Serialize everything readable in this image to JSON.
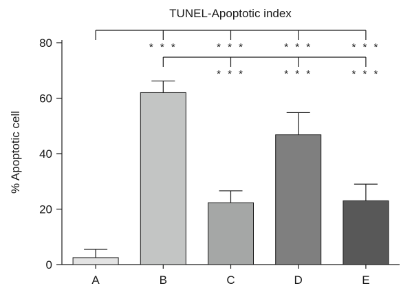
{
  "chart_data": {
    "type": "bar",
    "title": "TUNEL-Apoptotic index",
    "xlabel": "",
    "ylabel": "% Apoptotic cell",
    "ylim": [
      0,
      80
    ],
    "yticks": [
      0,
      20,
      40,
      60,
      80
    ],
    "grid": false,
    "categories": [
      "A",
      "B",
      "C",
      "D",
      "E"
    ],
    "values": [
      2.5,
      62,
      22.3,
      46.8,
      23
    ],
    "errors": [
      3,
      4.2,
      4.3,
      8,
      6
    ],
    "colors": [
      "#e3e3e3",
      "#c3c5c4",
      "#a5a7a6",
      "#7f7f7f",
      "#585858"
    ],
    "significance": [
      {
        "reference": "A",
        "marker": "* * *",
        "compared_to": [
          "B",
          "C",
          "D",
          "E"
        ]
      },
      {
        "reference": "B",
        "marker": "* * *",
        "compared_to": [
          "C",
          "D",
          "E"
        ]
      }
    ]
  }
}
